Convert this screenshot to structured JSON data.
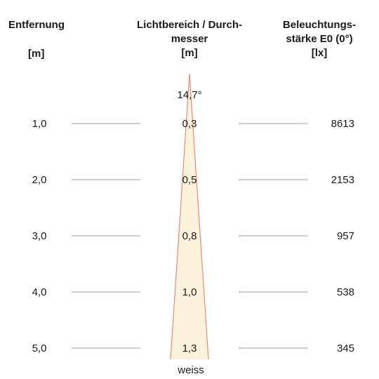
{
  "headers": {
    "distance": {
      "title": "Entfernung",
      "unit": "[m]"
    },
    "diameter": {
      "title_line1": "Lichtbereich / Durch-",
      "title_line2": "messer",
      "unit": "[m]"
    },
    "illuminance": {
      "title_line1": "Beleuchtungs-",
      "title_line2": "stärke E0 (0°)",
      "unit": "[lx]"
    }
  },
  "beam": {
    "angle_label": "14,7°",
    "color_label": "weiss",
    "fill_color": "#fdf3dc",
    "edge_color": "#e58a78"
  },
  "rows": [
    {
      "distance": "1,0",
      "diameter": "0,3",
      "illuminance": "8613"
    },
    {
      "distance": "2,0",
      "diameter": "0,5",
      "illuminance": "2153"
    },
    {
      "distance": "3,0",
      "diameter": "0,8",
      "illuminance": "957"
    },
    {
      "distance": "4,0",
      "diameter": "1,0",
      "illuminance": "538"
    },
    {
      "distance": "5,0",
      "diameter": "1,3",
      "illuminance": "345"
    }
  ]
}
